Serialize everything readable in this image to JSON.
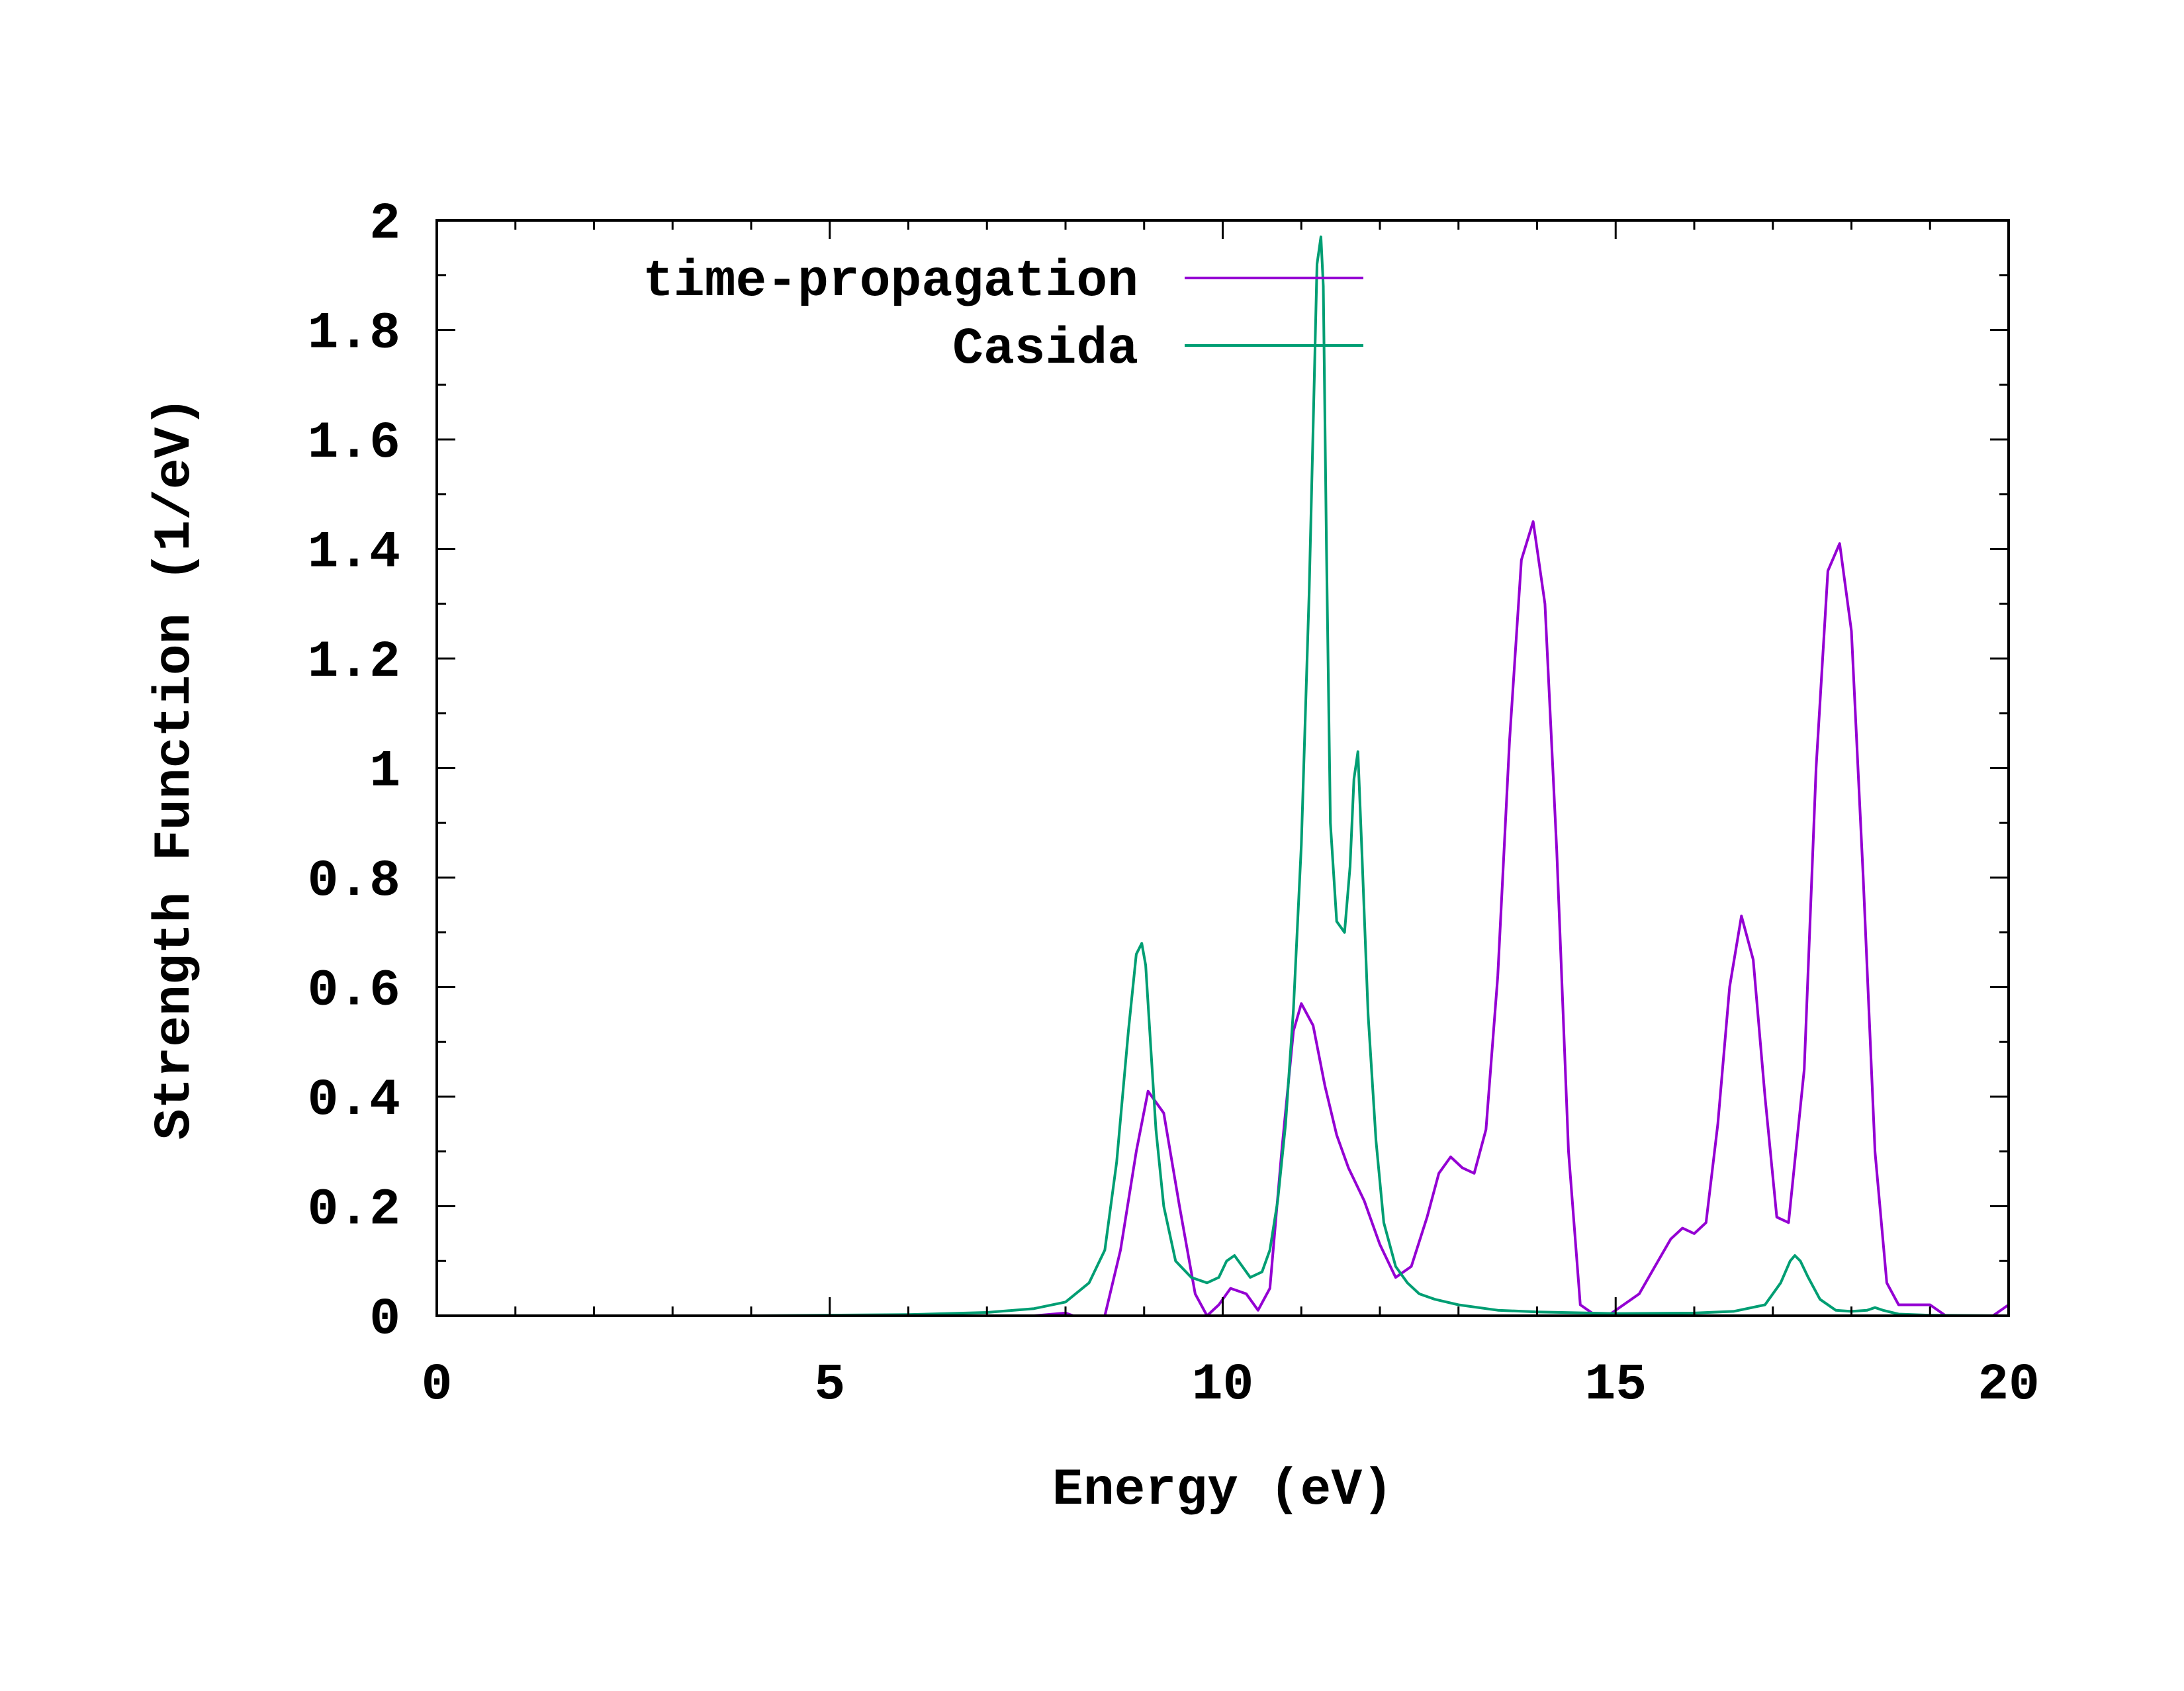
{
  "chart_data": {
    "type": "line",
    "title": "",
    "xlabel": "Energy (eV)",
    "ylabel": "Strength Function (1/eV)",
    "xlim": [
      0,
      20
    ],
    "ylim": [
      0,
      2
    ],
    "xticks": [
      0,
      5,
      10,
      15,
      20
    ],
    "xtick_labels": [
      "0",
      "5",
      "10",
      "15",
      "20"
    ],
    "yticks": [
      0,
      0.2,
      0.4,
      0.6,
      0.8,
      1,
      1.2,
      1.4,
      1.6,
      1.8,
      2
    ],
    "ytick_labels": [
      "0",
      "0.2",
      "0.4",
      "0.6",
      "0.8",
      "1",
      "1.2",
      "1.4",
      "1.6",
      "1.8",
      "2"
    ],
    "grid": false,
    "legend_position": "top-left",
    "series": [
      {
        "name": "time-propagation",
        "color": "#9400d3",
        "x": [
          0,
          7.6,
          8.0,
          8.3,
          8.5,
          8.7,
          8.9,
          9.05,
          9.25,
          9.45,
          9.65,
          9.8,
          9.95,
          10.1,
          10.3,
          10.45,
          10.6,
          10.75,
          10.9,
          11.0,
          11.15,
          11.3,
          11.45,
          11.6,
          11.8,
          12.0,
          12.2,
          12.4,
          12.6,
          12.75,
          12.9,
          13.05,
          13.2,
          13.35,
          13.5,
          13.65,
          13.8,
          13.95,
          14.1,
          14.25,
          14.4,
          14.55,
          14.75,
          14.9,
          15.1,
          15.3,
          15.5,
          15.7,
          15.85,
          16.0,
          16.15,
          16.3,
          16.45,
          16.6,
          16.75,
          16.9,
          17.05,
          17.2,
          17.4,
          17.55,
          17.7,
          17.85,
          18.0,
          18.15,
          18.3,
          18.45,
          18.6,
          18.8,
          19.0,
          19.2,
          19.4,
          19.6,
          19.8,
          20.0
        ],
        "y": [
          0,
          0,
          0.005,
          -0.01,
          0.0,
          0.12,
          0.3,
          0.41,
          0.37,
          0.2,
          0.04,
          0.0,
          0.02,
          0.05,
          0.04,
          0.01,
          0.05,
          0.3,
          0.52,
          0.57,
          0.53,
          0.42,
          0.33,
          0.27,
          0.21,
          0.13,
          0.07,
          0.09,
          0.18,
          0.26,
          0.29,
          0.27,
          0.26,
          0.34,
          0.62,
          1.05,
          1.38,
          1.45,
          1.3,
          0.85,
          0.3,
          0.02,
          0.0,
          0.0,
          0.02,
          0.04,
          0.09,
          0.14,
          0.16,
          0.15,
          0.17,
          0.35,
          0.6,
          0.73,
          0.65,
          0.4,
          0.18,
          0.17,
          0.45,
          1.0,
          1.36,
          1.41,
          1.25,
          0.8,
          0.3,
          0.06,
          0.02,
          0.02,
          0.02,
          0.0,
          0.0,
          0.0,
          0.0,
          0.02
        ]
      },
      {
        "name": "Casida",
        "color": "#009e73",
        "x": [
          0,
          4.0,
          6.0,
          7.0,
          7.6,
          8.0,
          8.3,
          8.5,
          8.65,
          8.8,
          8.9,
          8.97,
          9.02,
          9.08,
          9.15,
          9.25,
          9.4,
          9.6,
          9.8,
          9.95,
          10.05,
          10.15,
          10.25,
          10.35,
          10.5,
          10.6,
          10.7,
          10.8,
          10.9,
          11.0,
          11.1,
          11.15,
          11.2,
          11.25,
          11.28,
          11.32,
          11.37,
          11.45,
          11.55,
          11.62,
          11.67,
          11.72,
          11.77,
          11.85,
          11.95,
          12.05,
          12.2,
          12.35,
          12.5,
          12.7,
          13.0,
          13.5,
          14.0,
          15.0,
          16.0,
          16.5,
          16.9,
          17.1,
          17.22,
          17.28,
          17.35,
          17.45,
          17.6,
          17.8,
          18.0,
          18.2,
          18.3,
          18.4,
          18.6,
          19.0,
          20.0
        ],
        "y": [
          0,
          0.0,
          0.002,
          0.006,
          0.013,
          0.025,
          0.06,
          0.12,
          0.28,
          0.52,
          0.66,
          0.68,
          0.64,
          0.5,
          0.34,
          0.2,
          0.1,
          0.07,
          0.06,
          0.07,
          0.1,
          0.11,
          0.09,
          0.07,
          0.08,
          0.12,
          0.21,
          0.35,
          0.56,
          0.86,
          1.32,
          1.62,
          1.92,
          1.97,
          1.88,
          1.4,
          0.9,
          0.72,
          0.7,
          0.82,
          0.98,
          1.03,
          0.85,
          0.55,
          0.32,
          0.17,
          0.09,
          0.06,
          0.04,
          0.03,
          0.02,
          0.01,
          0.007,
          0.004,
          0.005,
          0.008,
          0.02,
          0.06,
          0.1,
          0.11,
          0.1,
          0.07,
          0.03,
          0.01,
          0.008,
          0.01,
          0.015,
          0.01,
          0.003,
          0.001,
          0.0
        ]
      }
    ]
  }
}
